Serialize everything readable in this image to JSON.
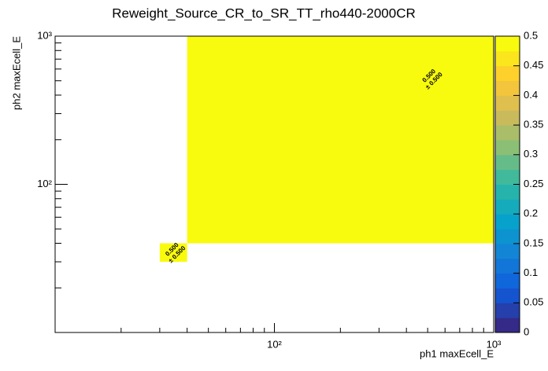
{
  "chart_data": {
    "type": "heatmap",
    "title": "Reweight_Source_CR_to_SR_TT_rho440-2000CR",
    "x_label": "ph1 maxEcell_E",
    "y_label": "ph2 maxEcell_E",
    "x_edges": [
      30,
      40,
      1000
    ],
    "y_edges": [
      30,
      40,
      1000
    ],
    "values": [
      [
        0.5,
        null
      ],
      [
        null,
        0.5
      ]
    ],
    "errors": [
      [
        0.5,
        null
      ],
      [
        null,
        0.5
      ]
    ],
    "value_labels": [
      [
        "0.500",
        null
      ],
      [
        null,
        "0.500"
      ]
    ],
    "error_labels": [
      [
        "± 0.500",
        null
      ],
      [
        null,
        "± 0.500"
      ]
    ],
    "log_x": true,
    "log_y": true,
    "xlim": [
      10,
      1000
    ],
    "ylim": [
      10,
      1000
    ],
    "xticks": [
      {
        "value": 100,
        "label": "10²"
      },
      {
        "value": 1000,
        "label": "10³"
      }
    ],
    "yticks": [
      {
        "value": 100,
        "label": "10²"
      },
      {
        "value": 1000,
        "label": "10³"
      }
    ],
    "xminorticks": [
      20,
      30,
      40,
      50,
      60,
      70,
      80,
      90,
      200,
      300,
      400,
      500,
      600,
      700,
      800,
      900
    ],
    "yminorticks": [
      20,
      30,
      40,
      50,
      60,
      70,
      80,
      90,
      200,
      300,
      400,
      500,
      600,
      700,
      800,
      900
    ],
    "zlim": [
      0,
      0.5
    ],
    "zticks": [
      0,
      0.05,
      0.1,
      0.15,
      0.2,
      0.25,
      0.3,
      0.35,
      0.4,
      0.45,
      0.5
    ],
    "palette": [
      "#352a87",
      "#0f5cdd",
      "#1481d6",
      "#06a4ca",
      "#2eb7a4",
      "#87bf77",
      "#d1bb59",
      "#fec832",
      "#f9fb0e"
    ],
    "palette_bands": 20
  }
}
